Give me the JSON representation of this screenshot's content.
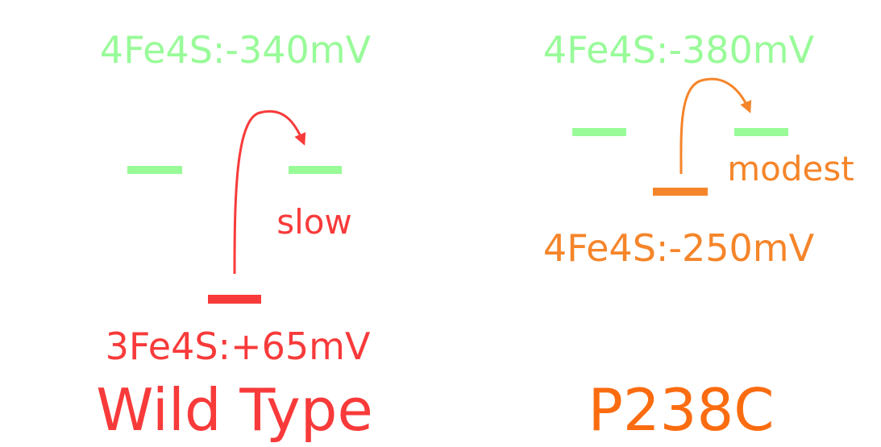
{
  "colors": {
    "green": "#98fb98",
    "red": "#f83a3a",
    "orange_light": "#f5852a",
    "orange_dark": "#fb6c10"
  },
  "wild_type": {
    "title": "Wild Type",
    "top_label": "4Fe4S:-340mV",
    "bottom_label": "3Fe4S:+65mV",
    "rate_label": "slow"
  },
  "p238c": {
    "title": "P238C",
    "top_label": "4Fe4S:-380mV",
    "bottom_label": "4Fe4S:-250mV",
    "rate_label": "modest"
  }
}
